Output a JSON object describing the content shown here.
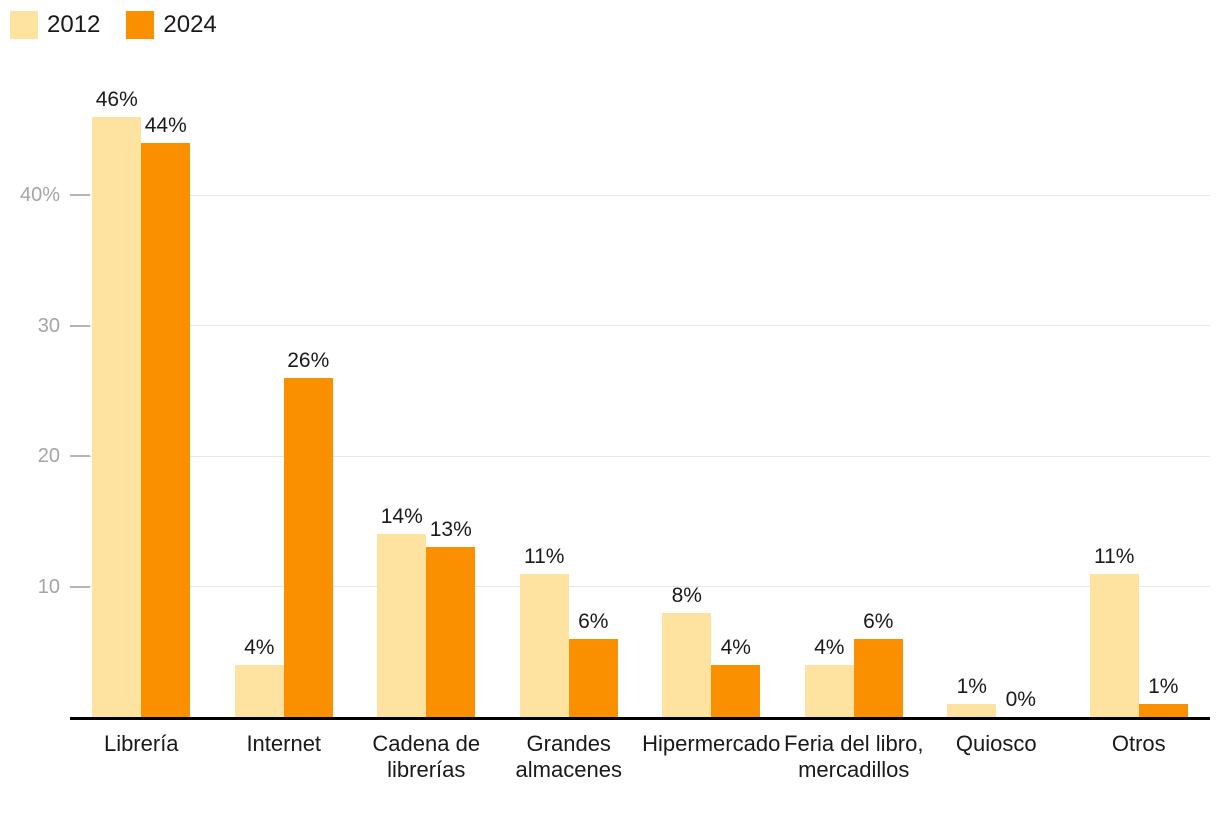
{
  "chart_data": {
    "type": "bar",
    "title": "",
    "categories": [
      "Librería",
      "Internet",
      "Cadena de librerías",
      "Grandes almacenes",
      "Hipermercado",
      "Feria del libro, mercadillos",
      "Quiosco",
      "Otros"
    ],
    "series": [
      {
        "name": "2012",
        "color": "#FDE2A0",
        "values": [
          46,
          4,
          14,
          11,
          8,
          4,
          1,
          11
        ],
        "labels": [
          "46%",
          "4%",
          "14%",
          "11%",
          "8%",
          "4%",
          "1%",
          "11%"
        ]
      },
      {
        "name": "2024",
        "color": "#FA8F00",
        "values": [
          44,
          26,
          13,
          6,
          4,
          6,
          0,
          1
        ],
        "labels": [
          "44%",
          "26%",
          "13%",
          "6%",
          "4%",
          "6%",
          "0%",
          "1%"
        ]
      }
    ],
    "y_ticks": [
      {
        "value": 10,
        "label": "10"
      },
      {
        "value": 20,
        "label": "20"
      },
      {
        "value": 30,
        "label": "30"
      },
      {
        "value": 40,
        "label": "40%"
      }
    ],
    "ylim": [
      0,
      48
    ],
    "grid": true,
    "value_suffix": "%",
    "legend_position": "top-left",
    "colors": {
      "axis_line": "#000000",
      "gridline": "#e8e8e8",
      "tick_mark": "#b5b5b5",
      "value_label": "#1a1a1a",
      "category_label": "#1a1a1a",
      "y_axis_label": "#a5a5a5",
      "background": "#ffffff"
    }
  }
}
